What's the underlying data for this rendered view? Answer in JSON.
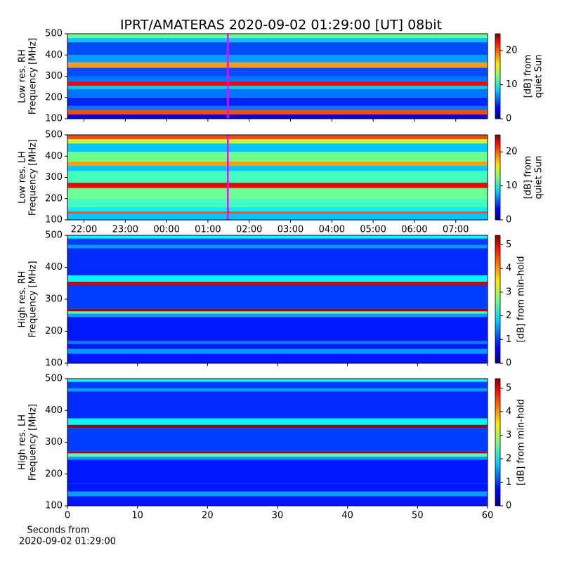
{
  "title": "IPRT/AMATERAS 2020-09-02 01:29:00 [UT]   08bit",
  "chart_data": [
    {
      "type": "heatmap",
      "ylabel": [
        "Low res. RH",
        "Frequency [MHz]"
      ],
      "ylim": [
        100,
        500
      ],
      "yticks": [
        100,
        200,
        300,
        400,
        500
      ],
      "xlim": [
        21.6,
        31.77
      ],
      "xticks": [
        {
          "value": 22,
          "label": "22:00"
        },
        {
          "value": 23,
          "label": "23:00"
        },
        {
          "value": 24,
          "label": "00:00"
        },
        {
          "value": 25,
          "label": "01:00"
        },
        {
          "value": 26,
          "label": "02:00"
        },
        {
          "value": 27,
          "label": "03:00"
        },
        {
          "value": 28,
          "label": "04:00"
        },
        {
          "value": 29,
          "label": "05:00"
        },
        {
          "value": 30,
          "label": "06:00"
        },
        {
          "value": 31,
          "label": "07:00"
        }
      ],
      "show_xticklabels": false,
      "marker_x": 25.483,
      "marker_color": "#ff00ff",
      "colormap": "jet",
      "clim": [
        0,
        25
      ],
      "cticks": [
        0,
        10,
        20
      ],
      "clabel": [
        "[dB] from",
        "quiet Sun"
      ],
      "y": [
        100,
        120,
        140,
        160,
        200,
        240,
        255,
        275,
        300,
        340,
        365,
        400,
        460,
        480,
        500
      ],
      "values": [
        3,
        20,
        6,
        4,
        6,
        8,
        22,
        6,
        5,
        18,
        7,
        5,
        8,
        12
      ]
    },
    {
      "type": "heatmap",
      "ylabel": [
        "Low res. LH",
        "Frequency [MHz]"
      ],
      "ylim": [
        100,
        500
      ],
      "yticks": [
        100,
        200,
        300,
        400,
        500
      ],
      "xlim": [
        21.6,
        31.77
      ],
      "xticks": [
        {
          "value": 22,
          "label": "22:00"
        },
        {
          "value": 23,
          "label": "23:00"
        },
        {
          "value": 24,
          "label": "00:00"
        },
        {
          "value": 25,
          "label": "01:00"
        },
        {
          "value": 26,
          "label": "02:00"
        },
        {
          "value": 27,
          "label": "03:00"
        },
        {
          "value": 28,
          "label": "04:00"
        },
        {
          "value": 29,
          "label": "05:00"
        },
        {
          "value": 30,
          "label": "06:00"
        },
        {
          "value": 31,
          "label": "07:00"
        }
      ],
      "show_xticklabels": true,
      "marker_x": 25.483,
      "marker_color": "#ff00ff",
      "colormap": "jet",
      "clim": [
        0,
        25
      ],
      "cticks": [
        0,
        10,
        20
      ],
      "clabel": [
        "[dB] from",
        "quiet Sun"
      ],
      "y": [
        100,
        130,
        140,
        160,
        200,
        250,
        275,
        330,
        355,
        375,
        420,
        460,
        480,
        500
      ],
      "values": [
        8,
        20,
        9,
        11,
        12,
        22,
        11,
        8,
        18,
        12,
        8,
        14,
        20
      ]
    },
    {
      "type": "heatmap",
      "ylabel": [
        "High res. RH",
        "Frequency [MHz]"
      ],
      "ylim": [
        100,
        500
      ],
      "yticks": [
        100,
        200,
        300,
        400,
        500
      ],
      "xlim": [
        0,
        60
      ],
      "xticks": [
        0,
        10,
        20,
        30,
        40,
        50,
        60
      ],
      "show_xticklabels": false,
      "colormap": "jet",
      "clim": [
        0,
        5.4
      ],
      "cticks": [
        0,
        1,
        2,
        3,
        4,
        5
      ],
      "clabel": [
        "[dB] from min-hold"
      ],
      "y": [
        100,
        130,
        145,
        160,
        170,
        245,
        255,
        262,
        270,
        345,
        355,
        375,
        460,
        470,
        490,
        500
      ],
      "values": [
        0.8,
        1.5,
        0.8,
        1.3,
        0.8,
        1.5,
        2.5,
        5.2,
        1,
        5,
        2,
        0.9,
        1.5,
        1,
        2
      ]
    },
    {
      "type": "heatmap",
      "ylabel": [
        "High res. LH",
        "Frequency [MHz]"
      ],
      "ylim": [
        100,
        500
      ],
      "yticks": [
        100,
        200,
        300,
        400,
        500
      ],
      "xlim": [
        0,
        60
      ],
      "xticks": [
        0,
        10,
        20,
        30,
        40,
        50,
        60
      ],
      "show_xticklabels": true,
      "xlabel": [
        "Seconds from",
        "2020-09-02 01:29:00"
      ],
      "colormap": "jet",
      "clim": [
        0,
        5.4
      ],
      "cticks": [
        0,
        1,
        2,
        3,
        4,
        5
      ],
      "clabel": [
        "[dB] from min-hold"
      ],
      "y": [
        100,
        130,
        145,
        170,
        245,
        255,
        265,
        272,
        345,
        355,
        375,
        460,
        470,
        490,
        500
      ],
      "values": [
        0.8,
        1.5,
        0.8,
        0.8,
        1.5,
        2.5,
        5.2,
        1,
        5.2,
        2,
        0.9,
        1.5,
        1,
        2
      ]
    }
  ]
}
